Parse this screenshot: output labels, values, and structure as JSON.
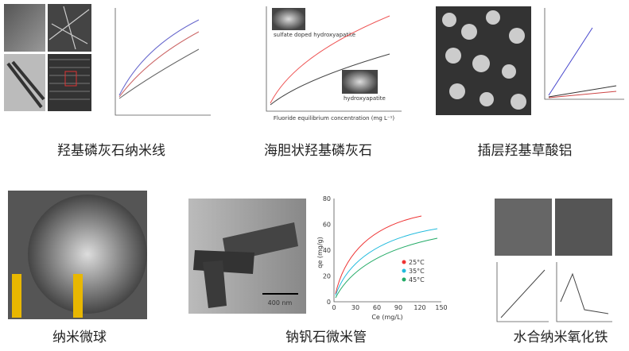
{
  "panels": [
    {
      "caption": "羟基磷灰石纳米线"
    },
    {
      "caption": "海胆状羟基磷灰石",
      "labels": [
        "sulfate doped hydroxyapatite",
        "hydroxyapatite"
      ],
      "x_label": "Fluoride equilibrium concentration (mg L⁻¹)"
    },
    {
      "caption": "插层羟基草酸铝"
    },
    {
      "caption": "纳米微球"
    },
    {
      "caption": "钠钒石微米管",
      "scale_bar": "400 nm",
      "y_label": "qe (mg/g)",
      "x_label": "Ce (mg/L)",
      "yticks": [
        "0",
        "20",
        "40",
        "60",
        "80"
      ],
      "xticks": [
        "0",
        "30",
        "60",
        "90",
        "120",
        "150"
      ],
      "legend": [
        "25°C",
        "35°C",
        "45°C"
      ]
    },
    {
      "caption": "水合纳米氧化铁"
    }
  ]
}
